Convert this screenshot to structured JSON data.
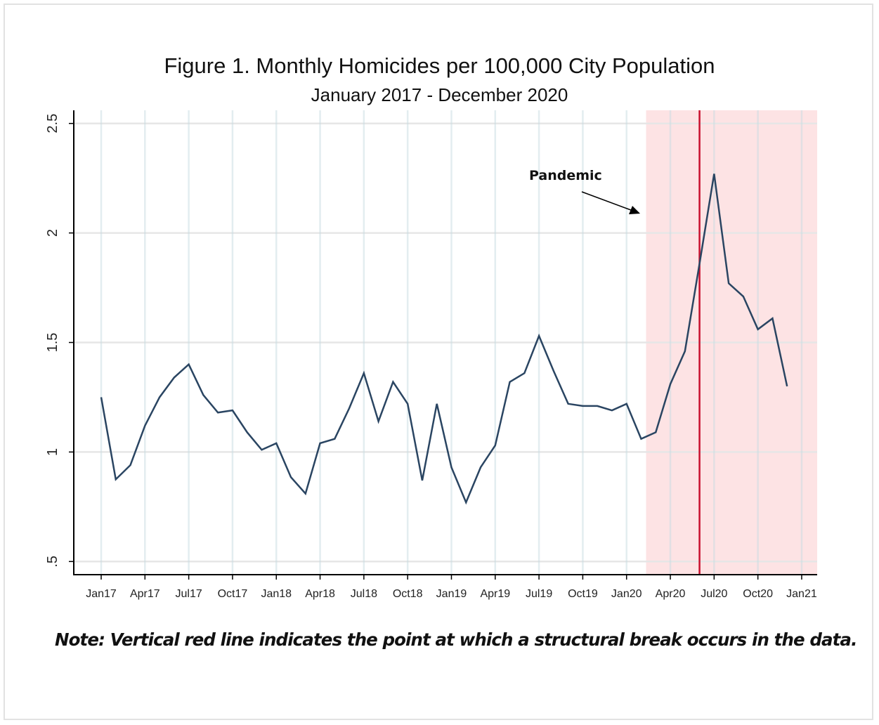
{
  "chart_data": {
    "type": "line",
    "title": "Figure 1. Monthly Homicides per 100,000 City Population",
    "subtitle": "January 2017 - December 2020",
    "xlabel": "",
    "ylabel": "",
    "ylim": [
      0.44,
      2.56
    ],
    "yticks": [
      {
        "value": 0.5,
        "label": ".5"
      },
      {
        "value": 1,
        "label": "1"
      },
      {
        "value": 1.5,
        "label": "1.5"
      },
      {
        "value": 2,
        "label": "2"
      },
      {
        "value": 2.5,
        "label": "2.5"
      }
    ],
    "xticks": [
      {
        "value": "2017-01",
        "label": "Jan17"
      },
      {
        "value": "2017-04",
        "label": "Apr17"
      },
      {
        "value": "2017-07",
        "label": "Jul17"
      },
      {
        "value": "2017-10",
        "label": "Oct17"
      },
      {
        "value": "2018-01",
        "label": "Jan18"
      },
      {
        "value": "2018-04",
        "label": "Apr18"
      },
      {
        "value": "2018-07",
        "label": "Jul18"
      },
      {
        "value": "2018-10",
        "label": "Oct18"
      },
      {
        "value": "2019-01",
        "label": "Jan19"
      },
      {
        "value": "2019-04",
        "label": "Apr19"
      },
      {
        "value": "2019-07",
        "label": "Jul19"
      },
      {
        "value": "2019-10",
        "label": "Oct19"
      },
      {
        "value": "2020-01",
        "label": "Jan20"
      },
      {
        "value": "2020-04",
        "label": "Apr20"
      },
      {
        "value": "2020-07",
        "label": "Jul20"
      },
      {
        "value": "2020-10",
        "label": "Oct20"
      },
      {
        "value": "2021-01",
        "label": "Jan21"
      }
    ],
    "grid": true,
    "x": [
      "2017-01",
      "2017-02",
      "2017-03",
      "2017-04",
      "2017-05",
      "2017-06",
      "2017-07",
      "2017-08",
      "2017-09",
      "2017-10",
      "2017-11",
      "2017-12",
      "2018-01",
      "2018-02",
      "2018-03",
      "2018-04",
      "2018-05",
      "2018-06",
      "2018-07",
      "2018-08",
      "2018-09",
      "2018-10",
      "2018-11",
      "2018-12",
      "2019-01",
      "2019-02",
      "2019-03",
      "2019-04",
      "2019-05",
      "2019-06",
      "2019-07",
      "2019-08",
      "2019-09",
      "2019-10",
      "2019-11",
      "2019-12",
      "2020-01",
      "2020-02",
      "2020-03",
      "2020-04",
      "2020-05",
      "2020-06",
      "2020-07",
      "2020-08",
      "2020-09",
      "2020-10",
      "2020-11",
      "2020-12"
    ],
    "series": [
      {
        "color": "#2a4562",
        "values": [
          1.25,
          0.875,
          0.94,
          1.12,
          1.25,
          1.34,
          1.4,
          1.26,
          1.18,
          1.19,
          1.09,
          1.01,
          1.04,
          0.885,
          0.81,
          1.04,
          1.06,
          1.2,
          1.36,
          1.14,
          1.32,
          1.22,
          0.87,
          1.22,
          0.93,
          0.77,
          0.93,
          1.03,
          1.32,
          1.36,
          1.53,
          1.37,
          1.22,
          1.21,
          1.21,
          1.19,
          1.22,
          1.06,
          1.09,
          1.31,
          1.46,
          1.86,
          2.27,
          1.77,
          1.71,
          1.56,
          1.61,
          1.3
        ]
      }
    ],
    "shaded_region": {
      "start": "2020-02",
      "end": "2021-01",
      "color": "#fde3e4"
    },
    "vertical_line": {
      "x": "2020-06",
      "color": "#c8102e"
    },
    "annotations": [
      {
        "text": "Pandemic",
        "arrow_to": "shaded_region"
      }
    ]
  },
  "note": "Note: Vertical red line indicates the point at which a structural break occurs in the data."
}
